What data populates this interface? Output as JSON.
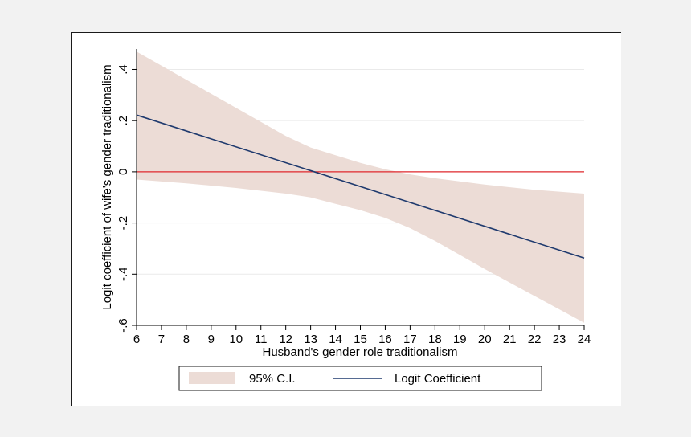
{
  "chart_data": {
    "type": "line",
    "title": "",
    "xlabel": "Husband's gender role traditionalism",
    "ylabel": "Logit coefficient of wife's gender traditionalism",
    "xlim": [
      6,
      24
    ],
    "ylim": [
      -0.6,
      0.48
    ],
    "x_ticks": [
      6,
      7,
      8,
      9,
      10,
      11,
      12,
      13,
      14,
      15,
      16,
      17,
      18,
      19,
      20,
      21,
      22,
      23,
      24
    ],
    "y_ticks": [
      -0.6,
      -0.4,
      -0.2,
      0,
      0.2,
      0.4
    ],
    "y_tick_labels": [
      "-.6",
      "-.4",
      "-.2",
      "0",
      ".2",
      ".4"
    ],
    "grid": true,
    "legend_position": "bottom",
    "reference_line": {
      "y": 0,
      "color": "#e0282d"
    },
    "series": [
      {
        "name": "95% C.I.",
        "kind": "band",
        "color": "#ecdcd6",
        "x": [
          6,
          8,
          10,
          12,
          13,
          14,
          15,
          16,
          17,
          18,
          20,
          22,
          24
        ],
        "upper": [
          0.47,
          0.36,
          0.25,
          0.14,
          0.095,
          0.065,
          0.035,
          0.01,
          -0.01,
          -0.025,
          -0.05,
          -0.07,
          -0.085
        ],
        "lower": [
          -0.03,
          -0.045,
          -0.063,
          -0.085,
          -0.1,
          -0.125,
          -0.15,
          -0.18,
          -0.22,
          -0.27,
          -0.38,
          -0.485,
          -0.59
        ]
      },
      {
        "name": "Logit Coefficient",
        "kind": "line",
        "color": "#1f3a6e",
        "x": [
          6,
          24
        ],
        "y": [
          0.222,
          -0.337
        ]
      }
    ]
  }
}
